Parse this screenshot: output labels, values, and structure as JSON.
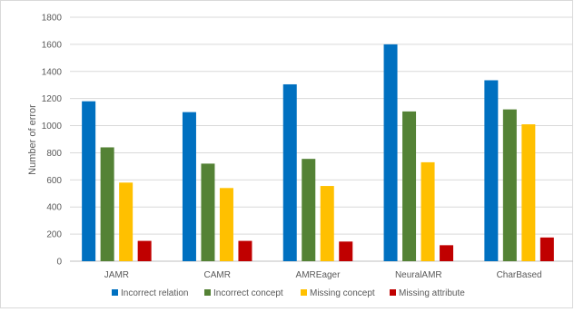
{
  "chart_data": {
    "type": "bar",
    "title": "",
    "xlabel": "",
    "ylabel": "Number of error",
    "ylim": [
      0,
      1800
    ],
    "yticks": [
      0,
      200,
      400,
      600,
      800,
      1000,
      1200,
      1400,
      1600,
      1800
    ],
    "grid": true,
    "legend_position": "bottom",
    "categories": [
      "JAMR",
      "CAMR",
      "AMREager",
      "NeuralAMR",
      "CharBased"
    ],
    "series": [
      {
        "name": "Incorrect relation",
        "color": "#0070C0",
        "values": [
          1180,
          1100,
          1305,
          1600,
          1335
        ]
      },
      {
        "name": "Incorrect concept",
        "color": "#548235",
        "values": [
          840,
          720,
          755,
          1105,
          1120
        ]
      },
      {
        "name": "Missing concept",
        "color": "#FFC000",
        "values": [
          580,
          540,
          555,
          730,
          1010
        ]
      },
      {
        "name": "Missing attribute",
        "color": "#C00000",
        "values": [
          150,
          150,
          145,
          118,
          175
        ]
      }
    ]
  }
}
